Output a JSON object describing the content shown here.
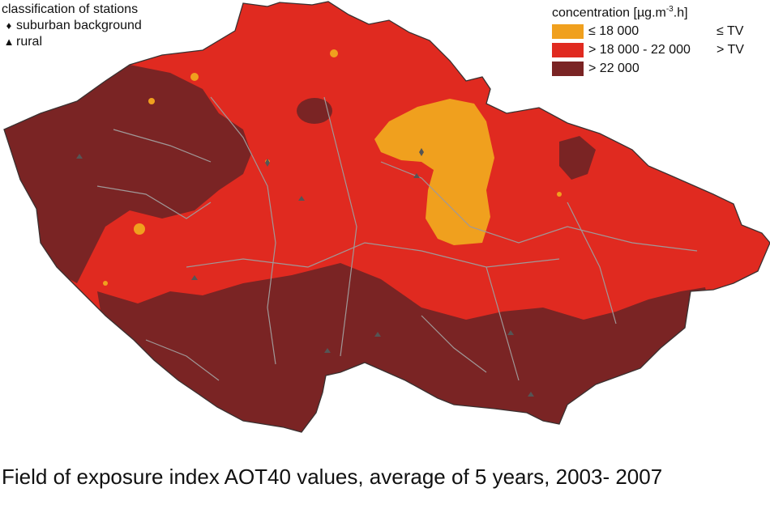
{
  "stations": {
    "title": "classification of stations",
    "items": [
      {
        "symbol": "♦",
        "icon": "diamond-icon",
        "label": "suburban background"
      },
      {
        "symbol": "▲",
        "icon": "triangle-icon",
        "label": "rural"
      }
    ]
  },
  "legend": {
    "title_prefix": "concentration [µg.m",
    "title_sup": "-3",
    "title_suffix": ".h]",
    "items": [
      {
        "range": "≤ 18 000",
        "tv": "≤ TV",
        "color": "#f0a01e"
      },
      {
        "range": "> 18 000 - 22 000",
        "tv": "> TV",
        "color": "#e02a20"
      },
      {
        "range": "> 22 000",
        "tv": "",
        "color": "#7a2424"
      }
    ]
  },
  "colors": {
    "low": "#f0a01e",
    "mid": "#e02a20",
    "high": "#7a2424",
    "borders": "#a09898",
    "outline": "#3a3030"
  },
  "caption": "Field of exposure index AOT40 values, average of 5 years, 2003- 2007"
}
